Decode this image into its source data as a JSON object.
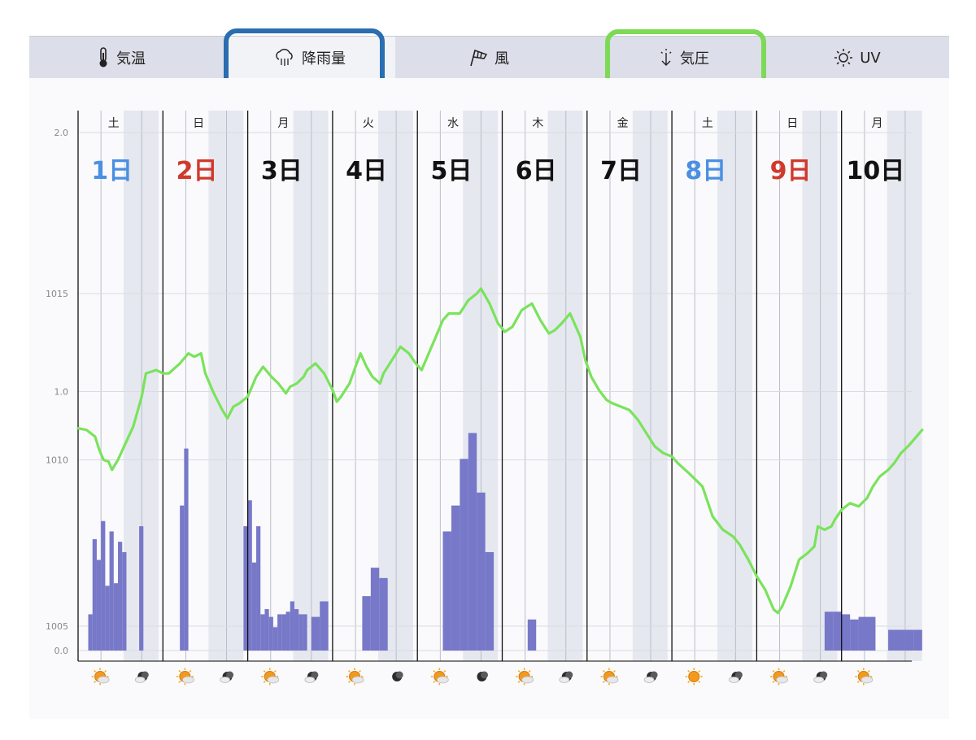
{
  "tabs": [
    {
      "label": "気温",
      "icon": "thermometer-icon",
      "active": false
    },
    {
      "label": "降雨量",
      "icon": "rain-cloud-icon",
      "active": true
    },
    {
      "label": "風",
      "icon": "windsock-icon",
      "active": false
    },
    {
      "label": "気圧",
      "icon": "pressure-arrow-icon",
      "active": false
    },
    {
      "label": "UV",
      "icon": "sun-icon",
      "active": false
    }
  ],
  "highlights": {
    "rain_tab_color": "#2a6db0",
    "pressure_tab_color": "#7ed957"
  },
  "chart_data": {
    "type": "line",
    "days": [
      {
        "weekday": "土",
        "date": "1日",
        "color": "#4a90e2"
      },
      {
        "weekday": "日",
        "date": "2日",
        "color": "#d0392b"
      },
      {
        "weekday": "月",
        "date": "3日",
        "color": "#111111"
      },
      {
        "weekday": "火",
        "date": "4日",
        "color": "#111111"
      },
      {
        "weekday": "水",
        "date": "5日",
        "color": "#111111"
      },
      {
        "weekday": "木",
        "date": "6日",
        "color": "#111111"
      },
      {
        "weekday": "金",
        "date": "7日",
        "color": "#111111"
      },
      {
        "weekday": "土",
        "date": "8日",
        "color": "#4a90e2"
      },
      {
        "weekday": "日",
        "date": "9日",
        "color": "#d0392b"
      },
      {
        "weekday": "月",
        "date": "10日",
        "color": "#111111"
      }
    ],
    "pressure_axis": {
      "ticks": [
        "1015",
        "1010",
        "1005"
      ],
      "tick_values": [
        1015,
        1010,
        1005
      ],
      "ylim": [
        1003.95,
        1020.5
      ]
    },
    "rain_axis": {
      "ticks": [
        "2.0",
        "1.0",
        "0.0"
      ],
      "tick_values": [
        2.0,
        1.0,
        0.0
      ],
      "ylim": [
        0,
        2.0
      ]
    },
    "series": [
      {
        "kind": "pressure",
        "color": "#7ae35c",
        "x": [
          0,
          0.1,
          0.2,
          0.25,
          0.3,
          0.36,
          0.4,
          0.47,
          0.56,
          0.65,
          0.75,
          0.8,
          0.92,
          1.0,
          1.07,
          1.2,
          1.3,
          1.37,
          1.45,
          1.5,
          1.6,
          1.7,
          1.76,
          1.83,
          1.9,
          2.0,
          2.1,
          2.18,
          2.28,
          2.36,
          2.45,
          2.5,
          2.58,
          2.66,
          2.7,
          2.8,
          2.9,
          3.0,
          3.05,
          3.1,
          3.2,
          3.27,
          3.33,
          3.4,
          3.47,
          3.56,
          3.6,
          3.7,
          3.8,
          3.9,
          3.98,
          4.05,
          4.1,
          4.2,
          4.3,
          4.37,
          4.4,
          4.5,
          4.6,
          4.7,
          4.75,
          4.85,
          4.95,
          5.03,
          5.12,
          5.23,
          5.35,
          5.45,
          5.55,
          5.62,
          5.7,
          5.8,
          5.92,
          5.98,
          6.05,
          6.14,
          6.23,
          6.3,
          6.4,
          6.5,
          6.6,
          6.7,
          6.8,
          6.9,
          7.0,
          7.07,
          7.2,
          7.36,
          7.4,
          7.48,
          7.6,
          7.72,
          7.8,
          7.9,
          8.0,
          8.1,
          8.2,
          8.25,
          8.3,
          8.4,
          8.5,
          8.6,
          8.68,
          8.72,
          8.8,
          8.88,
          8.92,
          9.0,
          9.1,
          9.2,
          9.3,
          9.37,
          9.45,
          9.55,
          9.62,
          9.7,
          9.8,
          9.95
        ],
        "values": [
          1010.95,
          1010.9,
          1010.7,
          1010.3,
          1010.0,
          1009.95,
          1009.7,
          1010.0,
          1010.5,
          1011.0,
          1011.9,
          1012.6,
          1012.7,
          1012.6,
          1012.6,
          1012.9,
          1013.2,
          1013.1,
          1013.2,
          1012.6,
          1012.0,
          1011.5,
          1011.25,
          1011.6,
          1011.7,
          1011.9,
          1012.5,
          1012.8,
          1012.5,
          1012.3,
          1012.0,
          1012.2,
          1012.3,
          1012.5,
          1012.7,
          1012.9,
          1012.6,
          1012.1,
          1011.75,
          1011.9,
          1012.3,
          1012.8,
          1013.2,
          1012.8,
          1012.5,
          1012.3,
          1012.6,
          1013.0,
          1013.4,
          1013.2,
          1012.9,
          1012.7,
          1013.0,
          1013.6,
          1014.2,
          1014.4,
          1014.4,
          1014.4,
          1014.8,
          1015.0,
          1015.15,
          1014.7,
          1014.1,
          1013.85,
          1014.0,
          1014.5,
          1014.7,
          1014.2,
          1013.8,
          1013.9,
          1014.1,
          1014.4,
          1013.7,
          1013.0,
          1012.5,
          1012.1,
          1011.8,
          1011.7,
          1011.6,
          1011.5,
          1011.2,
          1010.8,
          1010.4,
          1010.2,
          1010.1,
          1009.9,
          1009.6,
          1009.2,
          1008.9,
          1008.3,
          1007.9,
          1007.7,
          1007.45,
          1007.0,
          1006.5,
          1006.1,
          1005.5,
          1005.4,
          1005.6,
          1006.2,
          1007.0,
          1007.2,
          1007.4,
          1008.0,
          1007.9,
          1008.0,
          1008.2,
          1008.5,
          1008.7,
          1008.6,
          1008.85,
          1009.2,
          1009.5,
          1009.7,
          1009.9,
          1010.2,
          1010.45,
          1010.9
        ]
      },
      {
        "kind": "rain",
        "color": "#7778c8",
        "name": "",
        "x": [
          0.12,
          0.17,
          0.22,
          0.27,
          0.32,
          0.37,
          0.42,
          0.47,
          0.52,
          0.72,
          1.2,
          1.25,
          1.95,
          2.0,
          2.05,
          2.1,
          2.15,
          2.2,
          2.25,
          2.3,
          2.35,
          2.4,
          2.45,
          2.5,
          2.55,
          2.6,
          2.65,
          2.75,
          2.85,
          3.35,
          3.45,
          3.55,
          4.3,
          4.4,
          4.5,
          4.6,
          4.7,
          4.8,
          5.3,
          8.8,
          8.9,
          9.0,
          9.1,
          9.2,
          9.3,
          9.55,
          9.65,
          9.75,
          9.85
        ],
        "widths": [
          0.05,
          0.05,
          0.05,
          0.05,
          0.05,
          0.05,
          0.05,
          0.05,
          0.05,
          0.05,
          0.05,
          0.05,
          0.05,
          0.05,
          0.05,
          0.05,
          0.05,
          0.05,
          0.05,
          0.05,
          0.05,
          0.05,
          0.05,
          0.05,
          0.05,
          0.05,
          0.05,
          0.1,
          0.1,
          0.1,
          0.1,
          0.1,
          0.1,
          0.1,
          0.1,
          0.1,
          0.1,
          0.1,
          0.1,
          0.1,
          0.1,
          0.1,
          0.1,
          0.1,
          0.1,
          0.1,
          0.1,
          0.1,
          0.1
        ],
        "values": [
          0.14,
          0.43,
          0.35,
          0.5,
          0.25,
          0.46,
          0.26,
          0.42,
          0.38,
          0.48,
          0.56,
          0.78,
          0.48,
          0.58,
          0.34,
          0.48,
          0.14,
          0.16,
          0.13,
          0.09,
          0.14,
          0.14,
          0.15,
          0.19,
          0.16,
          0.14,
          0.14,
          0.13,
          0.19,
          0.21,
          0.32,
          0.28,
          0.46,
          0.56,
          0.74,
          0.84,
          0.61,
          0.38,
          0.12,
          0.15,
          0.15,
          0.14,
          0.12,
          0.13,
          0.13,
          0.08,
          0.08,
          0.08,
          0.08
        ]
      }
    ],
    "weather_icons": [
      "sun-cloud",
      "moon-cloud",
      "sun-cloud",
      "moon-cloud",
      "sun-cloud",
      "moon-cloud",
      "sun-cloud",
      "moon",
      "sun-cloud",
      "moon",
      "sun-cloud",
      "moon-cloud",
      "sun-cloud",
      "moon-cloud",
      "sun",
      "moon-cloud",
      "sun-cloud",
      "moon-cloud",
      "sun-cloud"
    ],
    "grid": true
  }
}
